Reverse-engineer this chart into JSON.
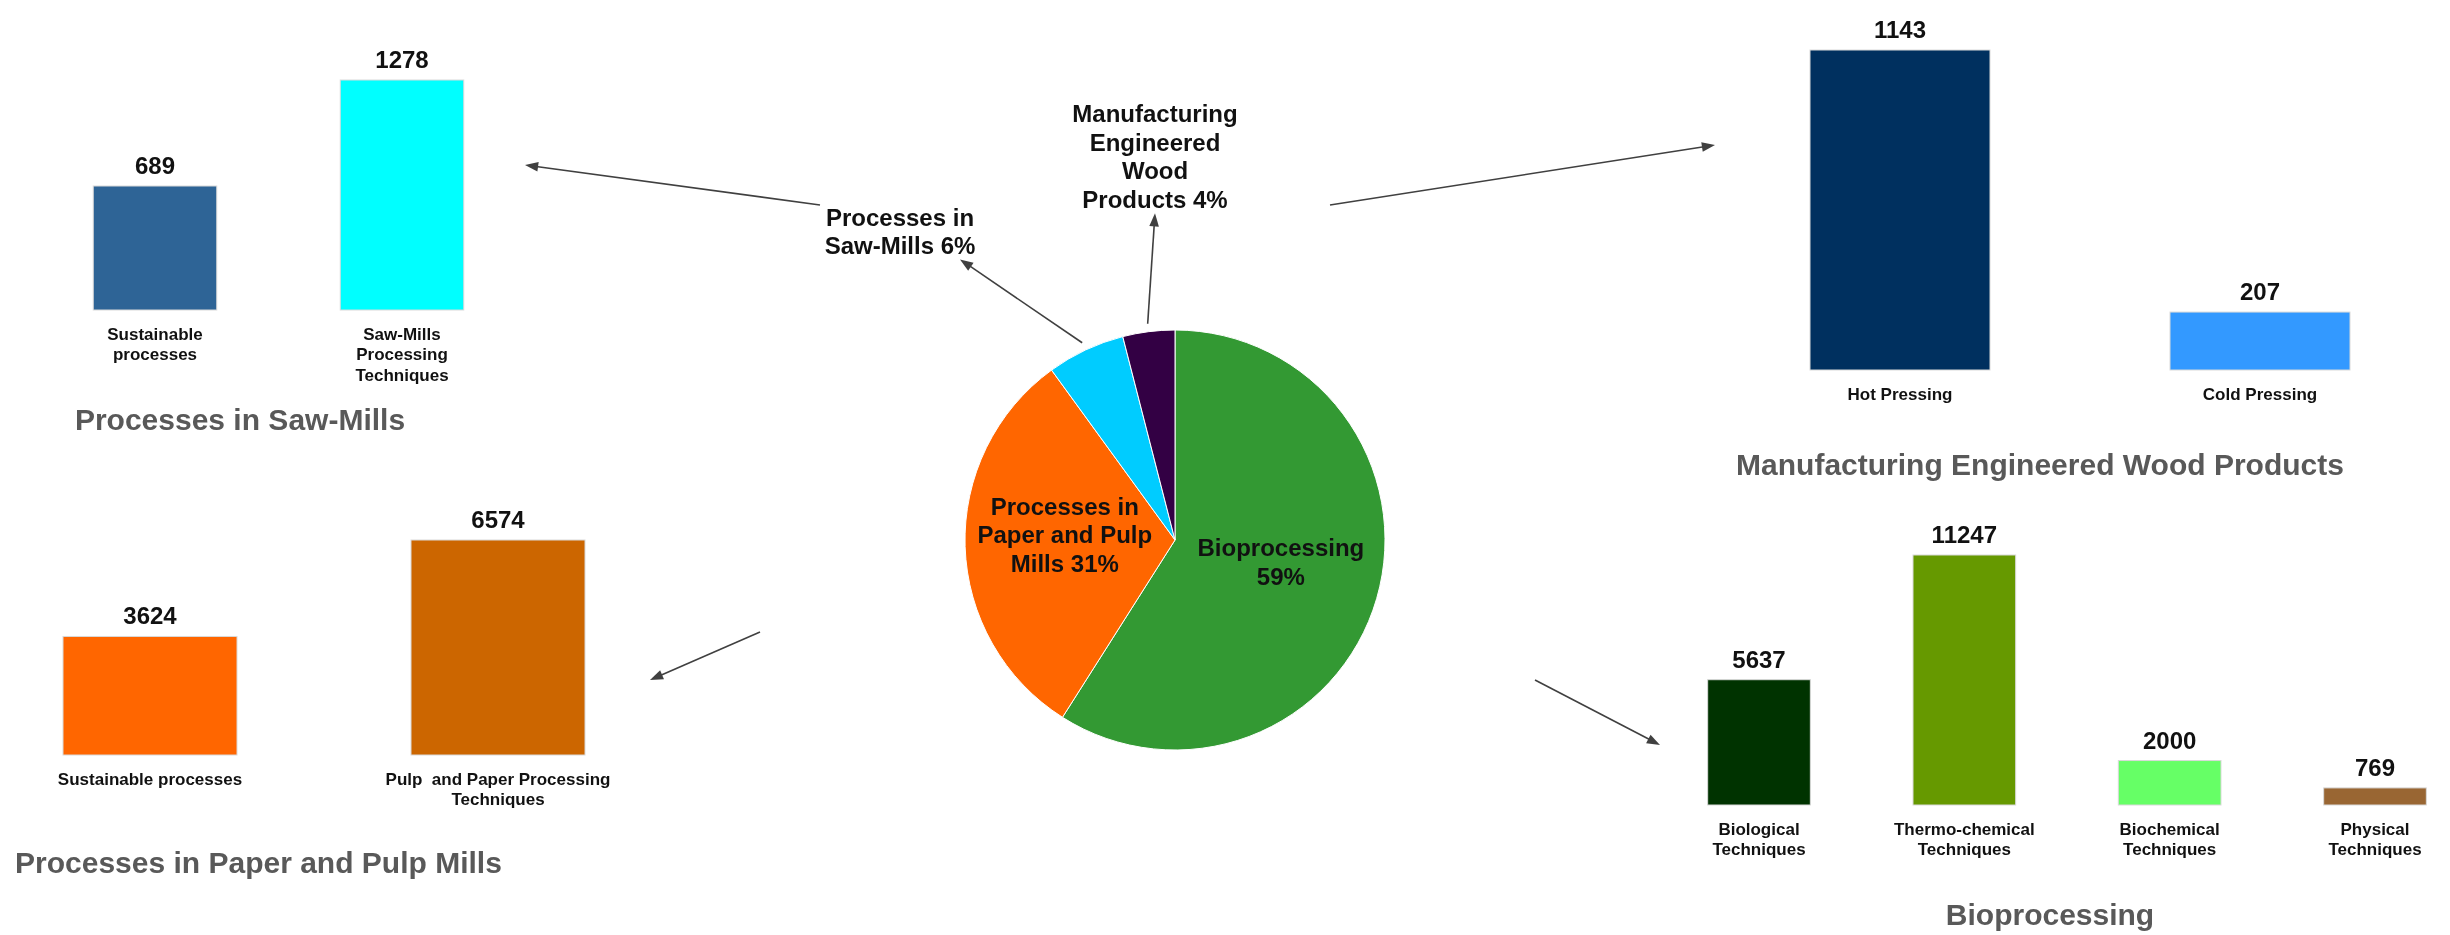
{
  "chart_data": [
    {
      "type": "bar",
      "title": "Processes in Saw-Mills",
      "categories": [
        "Sustainable processes",
        "Saw-Mills Processing Techniques"
      ],
      "values": [
        689,
        1278
      ],
      "colors": [
        "#2e6496",
        "#00ffff"
      ],
      "data_labels": true
    },
    {
      "type": "pie",
      "categories": [
        "Bioprocessing",
        "Processes in Paper and Pulp Mills",
        "Processes in Saw-Mills",
        "Manufacturing Engineered Wood Products"
      ],
      "values": [
        59,
        31,
        6,
        4
      ],
      "value_labels": [
        "59%",
        "31%",
        "6%",
        "4%"
      ],
      "colors": [
        "#339933",
        "#ff6600",
        "#00ccff",
        "#330044"
      ]
    },
    {
      "type": "bar",
      "title": "Manufacturing Engineered Wood Products",
      "categories": [
        "Hot Pressing",
        "Cold Pressing"
      ],
      "values": [
        1143,
        207
      ],
      "colors": [
        "#00305f",
        "#3399ff"
      ],
      "data_labels": true
    },
    {
      "type": "bar",
      "title": "Processes in Paper and Pulp Mills",
      "categories": [
        "Sustainable processes",
        "Pulp  and Paper Processing Techniques"
      ],
      "values": [
        3624,
        6574
      ],
      "colors": [
        "#ff6600",
        "#cc6600"
      ],
      "data_labels": true
    },
    {
      "type": "bar",
      "title": "Bioprocessing",
      "categories": [
        "Biological Techniques",
        "Thermo-chemical Techniques",
        "Biochemical Techniques",
        "Physical Techniques"
      ],
      "values": [
        5637,
        11247,
        2000,
        769
      ],
      "colors": [
        "#003300",
        "#669900",
        "#66ff66",
        "#996633"
      ],
      "data_labels": true
    }
  ]
}
